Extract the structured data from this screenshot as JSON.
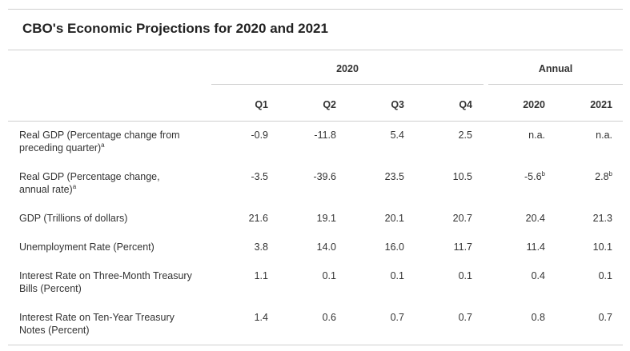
{
  "title": "CBO's Economic Projections for 2020 and 2021",
  "groups": {
    "quarterly": "2020",
    "annual": "Annual"
  },
  "columns": [
    "Q1",
    "Q2",
    "Q3",
    "Q4",
    "2020",
    "2021"
  ],
  "rows": [
    {
      "label_line1": "Real GDP (Percentage change from",
      "label_line2": "preceding quarter)",
      "label_note": "a",
      "values": [
        "-0.9",
        "-11.8",
        "5.4",
        "2.5",
        "n.a.",
        "n.a."
      ],
      "value_notes": [
        "",
        "",
        "",
        "",
        "",
        ""
      ]
    },
    {
      "label_line1": "Real GDP (Percentage change,",
      "label_line2": "annual rate)",
      "label_note": "a",
      "values": [
        "-3.5",
        "-39.6",
        "23.5",
        "10.5",
        "-5.6",
        "2.8"
      ],
      "value_notes": [
        "",
        "",
        "",
        "",
        "b",
        "b"
      ]
    },
    {
      "label_line1": "GDP (Trillions of dollars)",
      "label_line2": "",
      "label_note": "",
      "values": [
        "21.6",
        "19.1",
        "20.1",
        "20.7",
        "20.4",
        "21.3"
      ],
      "value_notes": [
        "",
        "",
        "",
        "",
        "",
        ""
      ]
    },
    {
      "label_line1": "Unemployment Rate (Percent)",
      "label_line2": "",
      "label_note": "",
      "values": [
        "3.8",
        "14.0",
        "16.0",
        "11.7",
        "11.4",
        "10.1"
      ],
      "value_notes": [
        "",
        "",
        "",
        "",
        "",
        ""
      ]
    },
    {
      "label_line1": "Interest Rate on Three-Month Treasury",
      "label_line2": "Bills (Percent)",
      "label_note": "",
      "values": [
        "1.1",
        "0.1",
        "0.1",
        "0.1",
        "0.4",
        "0.1"
      ],
      "value_notes": [
        "",
        "",
        "",
        "",
        "",
        ""
      ]
    },
    {
      "label_line1": "Interest Rate on Ten-Year Treasury",
      "label_line2": "Notes (Percent)",
      "label_note": "",
      "values": [
        "1.4",
        "0.6",
        "0.7",
        "0.7",
        "0.8",
        "0.7"
      ],
      "value_notes": [
        "",
        "",
        "",
        "",
        "",
        ""
      ]
    }
  ]
}
